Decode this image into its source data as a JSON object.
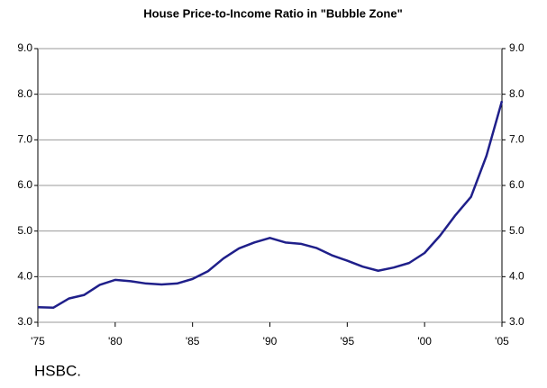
{
  "chart_data": {
    "type": "line",
    "title": "House Price-to-Income Ratio in \"Bubble Zone\"",
    "source": "HSBC.",
    "x": [
      1975,
      1976,
      1977,
      1978,
      1979,
      1980,
      1981,
      1982,
      1983,
      1984,
      1985,
      1986,
      1987,
      1988,
      1989,
      1990,
      1991,
      1992,
      1993,
      1994,
      1995,
      1996,
      1997,
      1998,
      1999,
      2000,
      2001,
      2002,
      2003,
      2004,
      2005
    ],
    "series": [
      {
        "name": "House Price-to-Income Ratio",
        "color": "#1f1f8a",
        "values": [
          3.33,
          3.32,
          3.52,
          3.6,
          3.82,
          3.93,
          3.9,
          3.85,
          3.83,
          3.85,
          3.95,
          4.12,
          4.4,
          4.62,
          4.75,
          4.85,
          4.75,
          4.72,
          4.63,
          4.47,
          4.35,
          4.22,
          4.13,
          4.2,
          4.3,
          4.52,
          4.9,
          5.35,
          5.75,
          6.65,
          7.85
        ]
      }
    ],
    "xlim": [
      1975,
      2005
    ],
    "xticks": [
      {
        "value": 1975,
        "label": "'75"
      },
      {
        "value": 1980,
        "label": "'80"
      },
      {
        "value": 1985,
        "label": "'85"
      },
      {
        "value": 1990,
        "label": "'90"
      },
      {
        "value": 1995,
        "label": "'95"
      },
      {
        "value": 2000,
        "label": "'00"
      },
      {
        "value": 2005,
        "label": "'05"
      }
    ],
    "ylim": [
      3,
      9
    ],
    "yticks": [
      {
        "value": 3,
        "label": "3.0"
      },
      {
        "value": 4,
        "label": "4.0"
      },
      {
        "value": 5,
        "label": "5.0"
      },
      {
        "value": 6,
        "label": "6.0"
      },
      {
        "value": 7,
        "label": "7.0"
      },
      {
        "value": 8,
        "label": "8.0"
      },
      {
        "value": 9,
        "label": "9.0"
      }
    ],
    "y2lim": [
      3,
      9
    ],
    "y2ticks": [
      {
        "value": 3,
        "label": "3.0"
      },
      {
        "value": 4,
        "label": "4.0"
      },
      {
        "value": 5,
        "label": "5.0"
      },
      {
        "value": 6,
        "label": "6.0"
      },
      {
        "value": 7,
        "label": "7.0"
      },
      {
        "value": 8,
        "label": "8.0"
      },
      {
        "value": 9,
        "label": "9.0"
      }
    ],
    "grid": true
  }
}
